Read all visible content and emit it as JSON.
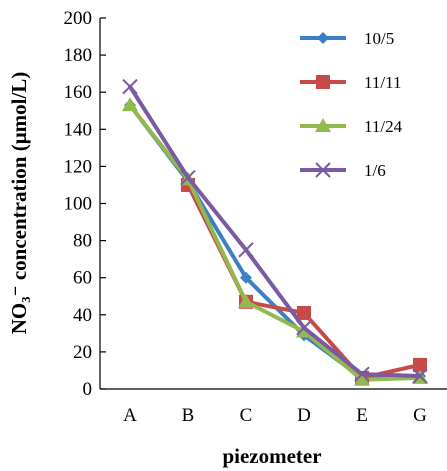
{
  "chart_data": {
    "type": "line",
    "xlabel": "piezometer",
    "ylabel": "NO₃⁻ concentration (μmol/L)",
    "categories": [
      "A",
      "B",
      "C",
      "D",
      "E",
      "G"
    ],
    "ylim": [
      0,
      200
    ],
    "yticks": [
      "0",
      "20",
      "40",
      "60",
      "80",
      "100",
      "120",
      "140",
      "160",
      "180",
      "200"
    ],
    "grid": false,
    "legend_position": "top-right",
    "series": [
      {
        "name": "10/5",
        "color": "#3d7fc4",
        "marker": "diamond",
        "values": [
          153,
          112,
          60,
          29,
          6,
          7
        ]
      },
      {
        "name": "11/11",
        "color": "#c84a48",
        "marker": "square",
        "values": [
          null,
          110,
          47,
          41,
          6,
          13
        ]
      },
      {
        "name": "11/24",
        "color": "#93b84e",
        "marker": "triangle",
        "values": [
          153,
          113,
          47,
          31,
          5,
          6
        ]
      },
      {
        "name": "1/6",
        "color": "#7a5aa0",
        "marker": "x",
        "values": [
          163,
          114,
          75,
          33,
          8,
          7
        ]
      }
    ]
  }
}
